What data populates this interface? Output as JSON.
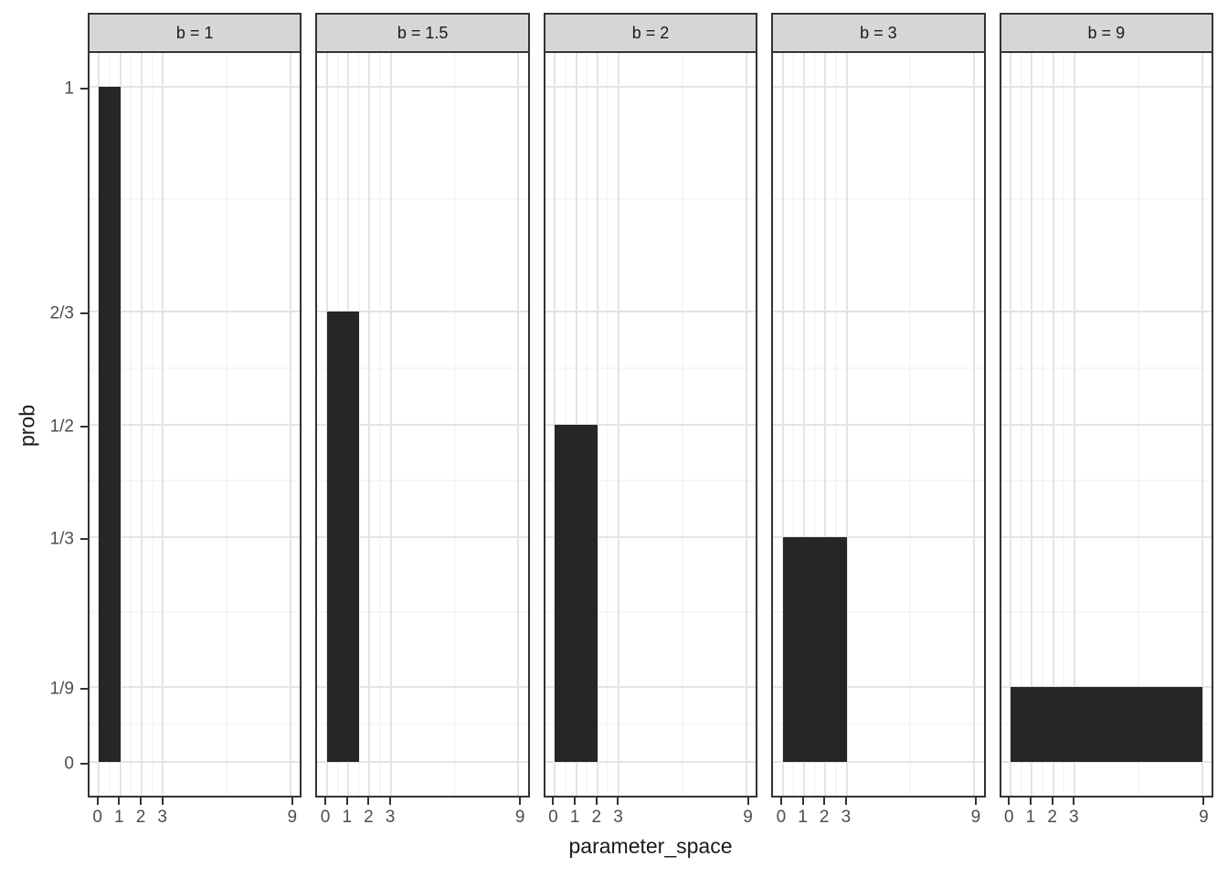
{
  "chart_data": {
    "type": "bar",
    "description": "Faceted bar chart of uniform distributions: each facet shows a single bar spanning x = 0 to b with height prob = 1/b",
    "facets": [
      {
        "strip_label": "b = 1",
        "b": 1,
        "prob": 1,
        "prob_label": "1"
      },
      {
        "strip_label": "b = 1.5",
        "b": 1.5,
        "prob": 0.6666667,
        "prob_label": "2/3"
      },
      {
        "strip_label": "b = 2",
        "b": 2,
        "prob": 0.5,
        "prob_label": "1/2"
      },
      {
        "strip_label": "b = 3",
        "b": 3,
        "prob": 0.3333333,
        "prob_label": "1/3"
      },
      {
        "strip_label": "b = 9",
        "b": 9,
        "prob": 0.1111111,
        "prob_label": "1/9"
      }
    ],
    "x_axis": {
      "title": "parameter_space",
      "range": [
        0,
        9
      ],
      "expand": 0.05,
      "breaks": [
        0,
        1,
        2,
        3,
        9
      ],
      "break_labels": [
        "0",
        "1",
        "2",
        "3",
        "9"
      ],
      "minor_breaks": [
        0.5,
        1.5,
        2.5,
        6
      ]
    },
    "y_axis": {
      "title": "prob",
      "range": [
        0,
        1
      ],
      "expand": 0.05,
      "breaks": [
        0,
        0.1111111,
        0.3333333,
        0.5,
        0.6666667,
        1
      ],
      "break_labels": [
        "0",
        "1/9",
        "1/3",
        "1/2",
        "2/3",
        "1"
      ],
      "minor_breaks": [
        0.0555556,
        0.2222222,
        0.4166667,
        0.5833333,
        0.8333333
      ]
    },
    "legend": "none",
    "grid": "on"
  },
  "colors": {
    "background": "#ffffff",
    "bar_fill": "#262626",
    "strip_background": "#d6d6d6",
    "panel_border": "#333333",
    "grid_major": "#e4e4e4",
    "grid_minor": "#efefef",
    "tick_mark": "#333333",
    "tick_label": "#4d4d4d",
    "axis_title": "#1a1a1a"
  }
}
